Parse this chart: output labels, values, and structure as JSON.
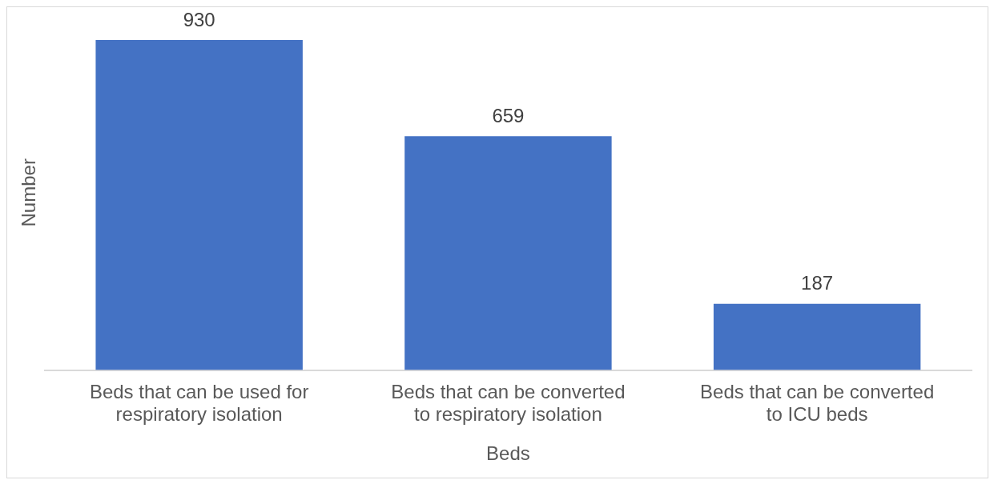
{
  "chart_data": {
    "type": "bar",
    "xlabel": "Beds",
    "ylabel": "Number",
    "categories": [
      "Beds that can be used for respiratory isolation",
      "Beds that can be converted to respiratory isolation",
      "Beds that can be converted to ICU beds"
    ],
    "values": [
      930,
      659,
      187
    ],
    "color": "#4472c4",
    "data_labels": true,
    "grid": false,
    "legend": false,
    "tick_labels": "x"
  }
}
